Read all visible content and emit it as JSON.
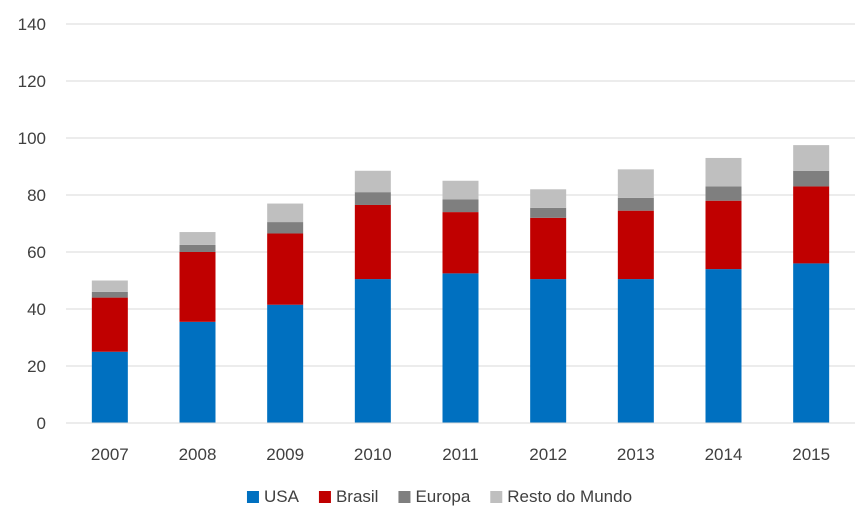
{
  "chart_data": {
    "type": "bar",
    "stacked": true,
    "categories": [
      "2007",
      "2008",
      "2009",
      "2010",
      "2011",
      "2012",
      "2013",
      "2014",
      "2015"
    ],
    "series": [
      {
        "name": "USA",
        "color": "#0070C0",
        "values": [
          25,
          35.5,
          41.5,
          50.5,
          52.5,
          50.5,
          50.5,
          54,
          56
        ]
      },
      {
        "name": "Brasil",
        "color": "#C00000",
        "values": [
          19,
          24.5,
          25,
          26,
          21.5,
          21.5,
          24,
          24,
          27
        ]
      },
      {
        "name": "Europa",
        "color": "#7F7F7F",
        "values": [
          2,
          2.5,
          4,
          4.5,
          4.5,
          3.5,
          4.5,
          5,
          5.5
        ]
      },
      {
        "name": "Resto do Mundo",
        "color": "#BFBFBF",
        "values": [
          4,
          4.5,
          6.5,
          7.5,
          6.5,
          6.5,
          10,
          10,
          9
        ]
      }
    ],
    "ylim": [
      0,
      140
    ],
    "yticks": [
      0,
      20,
      40,
      60,
      80,
      100,
      120,
      140
    ],
    "grid": true,
    "legend_position": "bottom",
    "title": "",
    "xlabel": "",
    "ylabel": ""
  }
}
